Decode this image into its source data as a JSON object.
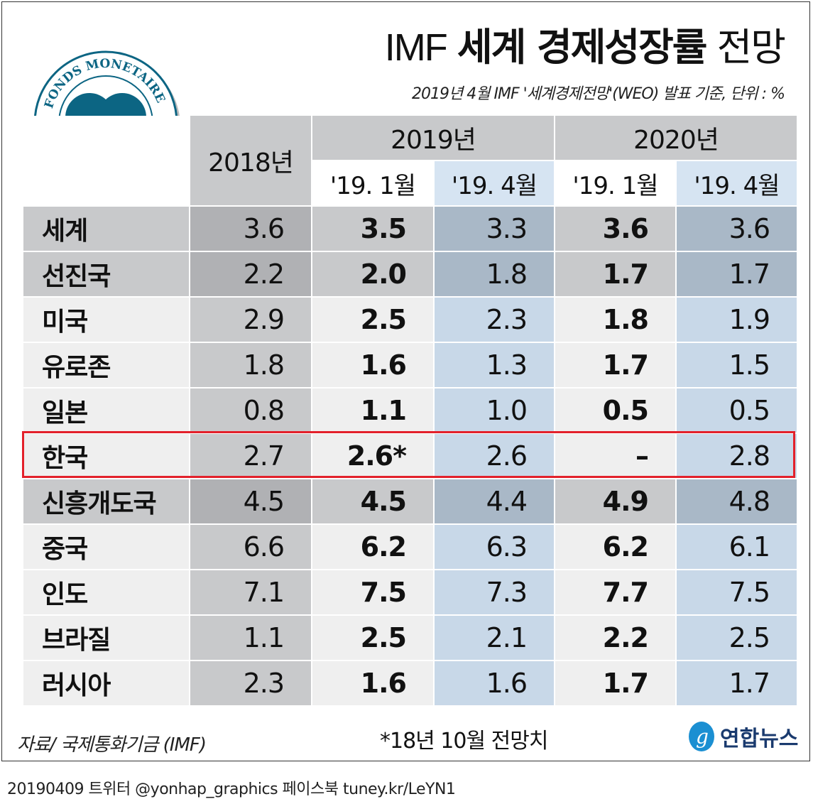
{
  "title": {
    "prefix": "IMF",
    "bold": "세계 경제성장률",
    "suffix": "전망"
  },
  "subtitle": "2019년 4월 IMF '세계경제전망'(WEO) 발표 기준, 단위 : %",
  "logo": {
    "text": "FONDS MONETAIRE INTERNATIONAL",
    "color": "#0c6583"
  },
  "colors": {
    "highlight": "#e3212b",
    "blue_light": "#c8d8e8",
    "blue_dark": "#a9b8c7",
    "gray_light": "#efefef",
    "gray_mid": "#c8c9cb",
    "gray_dark": "#b0b1b4"
  },
  "chart_data": {
    "type": "table",
    "title": "IMF 세계 경제성장률 전망",
    "units": "%",
    "header_groups": [
      {
        "label": "2018년"
      },
      {
        "label": "2019년",
        "columns": [
          "'19. 1월",
          "'19. 4월"
        ]
      },
      {
        "label": "2020년",
        "columns": [
          "'19. 1월",
          "'19. 4월"
        ]
      }
    ],
    "rows": [
      {
        "label": "세계",
        "values": [
          "3.6",
          "3.5",
          "3.3",
          "3.6",
          "3.6"
        ],
        "group": true
      },
      {
        "label": "선진국",
        "values": [
          "2.2",
          "2.0",
          "1.8",
          "1.7",
          "1.7"
        ],
        "group": true
      },
      {
        "label": "미국",
        "values": [
          "2.9",
          "2.5",
          "2.3",
          "1.8",
          "1.9"
        ]
      },
      {
        "label": "유로존",
        "values": [
          "1.8",
          "1.6",
          "1.3",
          "1.7",
          "1.5"
        ]
      },
      {
        "label": "일본",
        "values": [
          "0.8",
          "1.1",
          "1.0",
          "0.5",
          "0.5"
        ]
      },
      {
        "label": "한국",
        "values": [
          "2.7",
          "2.6*",
          "2.6",
          "–",
          "2.8"
        ],
        "highlight": true
      },
      {
        "label": "신흥개도국",
        "values": [
          "4.5",
          "4.5",
          "4.4",
          "4.9",
          "4.8"
        ],
        "group": true
      },
      {
        "label": "중국",
        "values": [
          "6.6",
          "6.2",
          "6.3",
          "6.2",
          "6.1"
        ]
      },
      {
        "label": "인도",
        "values": [
          "7.1",
          "7.5",
          "7.3",
          "7.7",
          "7.5"
        ]
      },
      {
        "label": "브라질",
        "values": [
          "1.1",
          "2.5",
          "2.1",
          "2.2",
          "2.5"
        ]
      },
      {
        "label": "러시아",
        "values": [
          "2.3",
          "1.6",
          "1.6",
          "1.7",
          "1.7"
        ]
      }
    ]
  },
  "source": "자료/ 국제통화기금 (IMF)",
  "footnote": "*18년 10월 전망치",
  "brand": "연합뉴스",
  "footer": "20190409 트위터 @yonhap_graphics  페이스북 tuney.kr/LeYN1"
}
